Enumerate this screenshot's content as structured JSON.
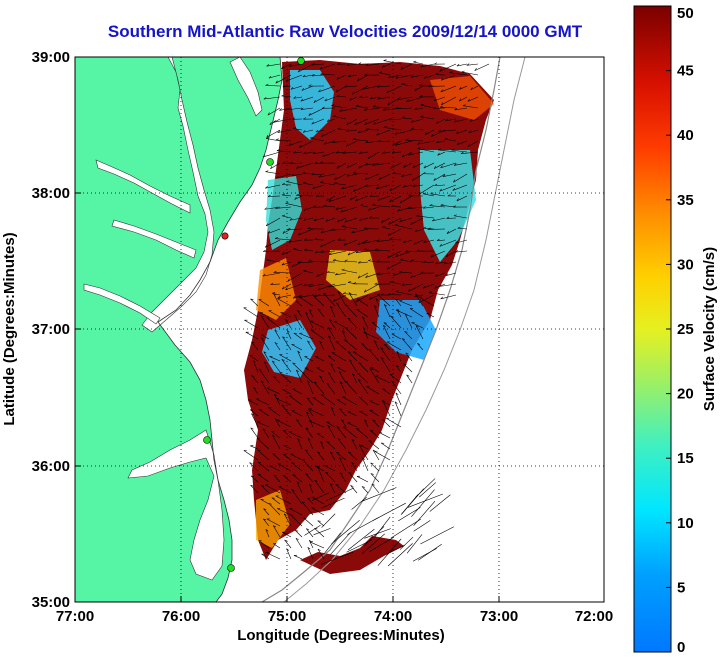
{
  "title": "Southern Mid-Atlantic Raw Velocities 2009/12/14 0000 GMT",
  "xlabel": "Longitude (Degrees:Minutes)",
  "ylabel": "Latitude (Degrees:Minutes)",
  "x_ticks": [
    "77:00",
    "76:00",
    "75:00",
    "74:00",
    "73:00",
    "72:00"
  ],
  "y_ticks": [
    "39:00",
    "38:00",
    "37:00",
    "36:00",
    "35:00"
  ],
  "colorbar": {
    "label": "Surface Velocity (cm/s)",
    "ticks": [
      "0",
      "5",
      "10",
      "15",
      "20",
      "25",
      "30",
      "35",
      "40",
      "45",
      "50"
    ],
    "range": [
      0,
      50
    ]
  },
  "colors": {
    "land": "#55f5a5",
    "ocean": "#ffffff",
    "title": "#1414c8",
    "stations": "#22dd22",
    "station_active": "#dd2222"
  },
  "chart_data": {
    "type": "map",
    "xlim": [
      "77:00 W",
      "72:00 W"
    ],
    "ylim": [
      "35:00 N",
      "39:00 N"
    ],
    "grid": true,
    "variable": "Surface Velocity (cm/s)"
  }
}
